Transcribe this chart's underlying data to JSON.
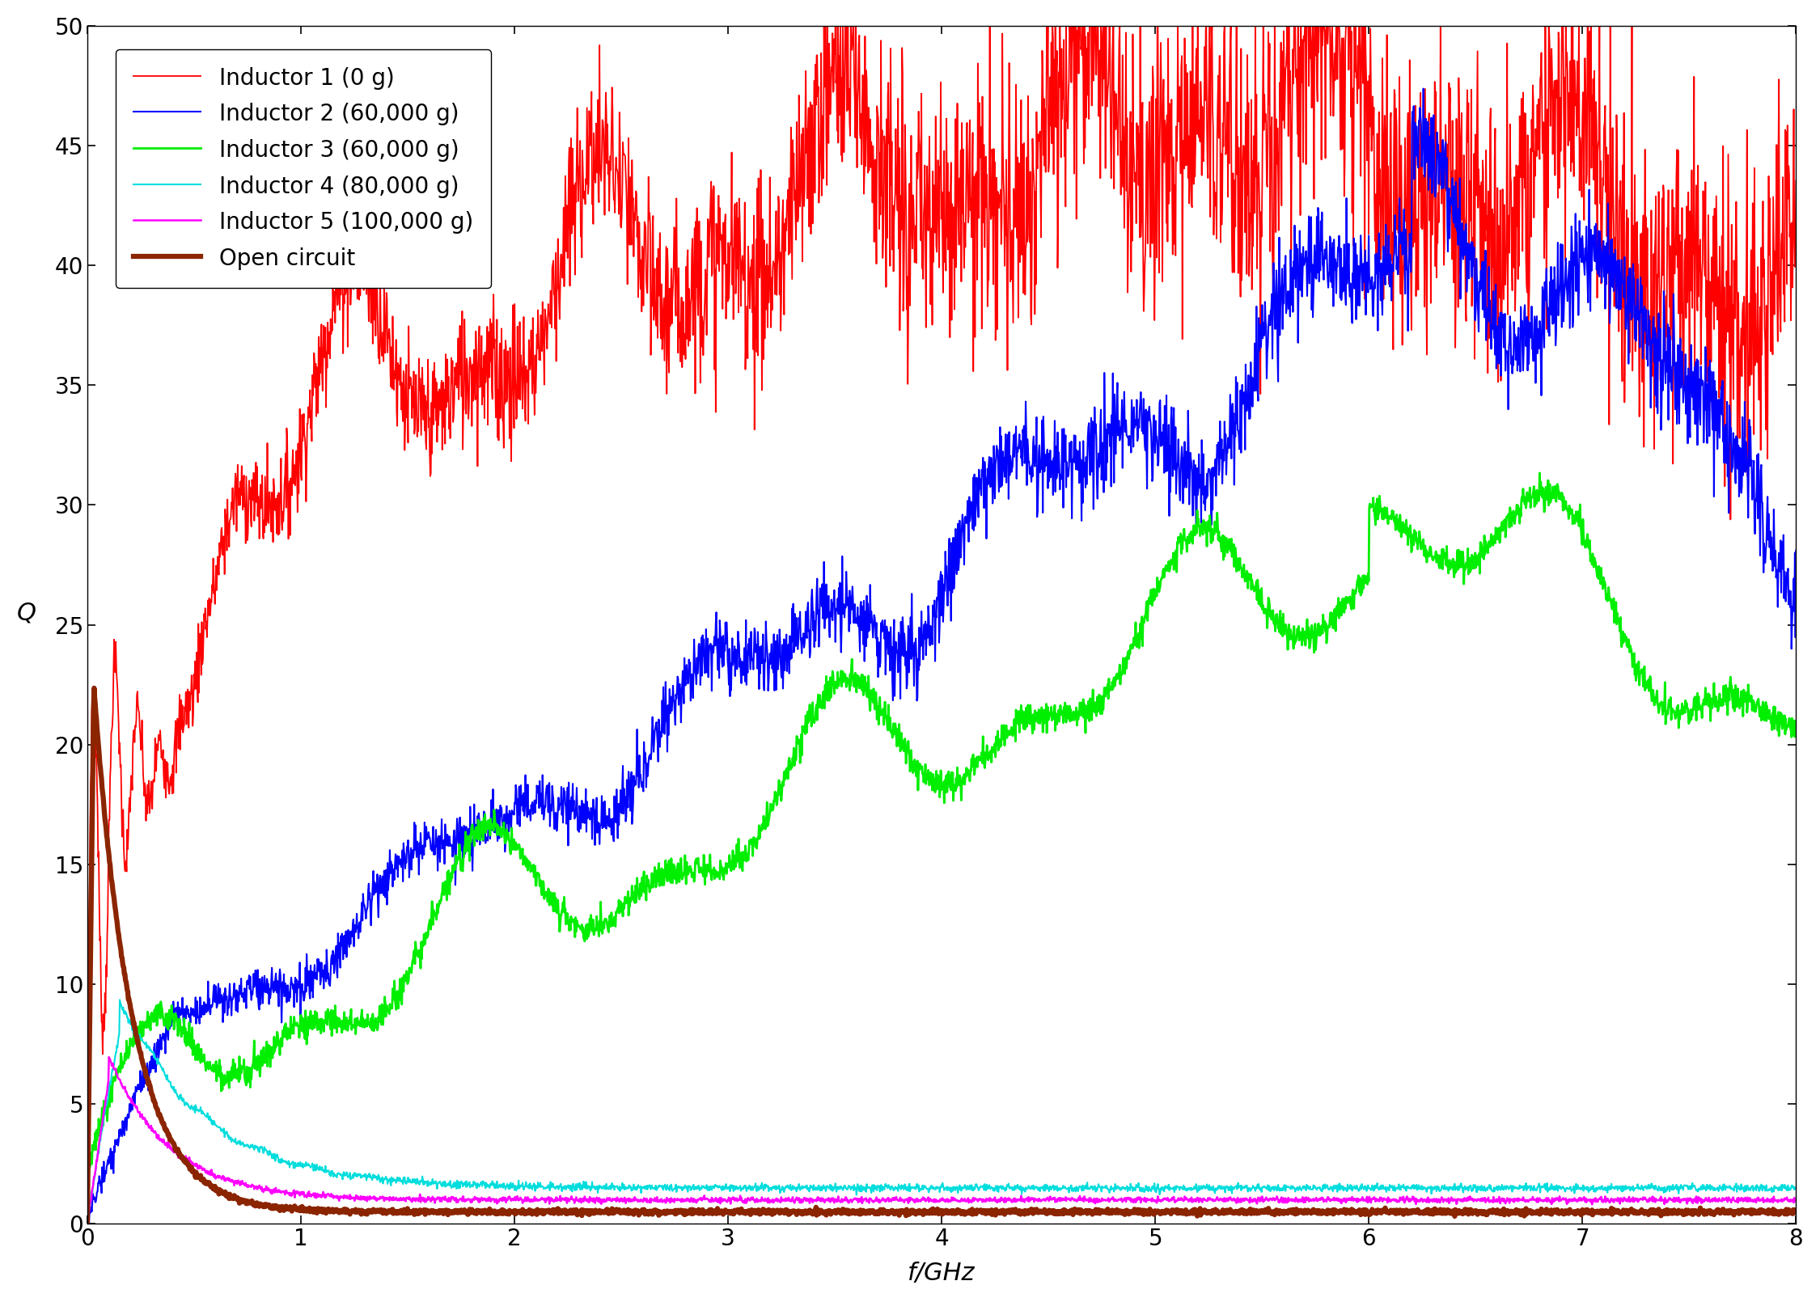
{
  "title": "",
  "xlabel": "f/GHz",
  "ylabel": "Q",
  "xlim": [
    0,
    8
  ],
  "ylim": [
    0,
    50
  ],
  "xticks": [
    0,
    1,
    2,
    3,
    4,
    5,
    6,
    7,
    8
  ],
  "yticks": [
    0,
    5,
    10,
    15,
    20,
    25,
    30,
    35,
    40,
    45,
    50
  ],
  "legend_labels": [
    "Inductor 1 (0 g)",
    "Inductor 2 (60,000 g)",
    "Inductor 3 (60,000 g)",
    "Inductor 4 (80,000 g)",
    "Inductor 5 (100,000 g)",
    "Open circuit"
  ],
  "line_colors": [
    "#ff0000",
    "#0000ff",
    "#00ee00",
    "#00dddd",
    "#ff00ff",
    "#8B2500"
  ],
  "line_widths": [
    1.3,
    1.5,
    2.0,
    1.5,
    1.8,
    4.5
  ],
  "background_color": "#ffffff",
  "font_size": 22,
  "legend_fontsize": 20,
  "tick_fontsize": 20
}
